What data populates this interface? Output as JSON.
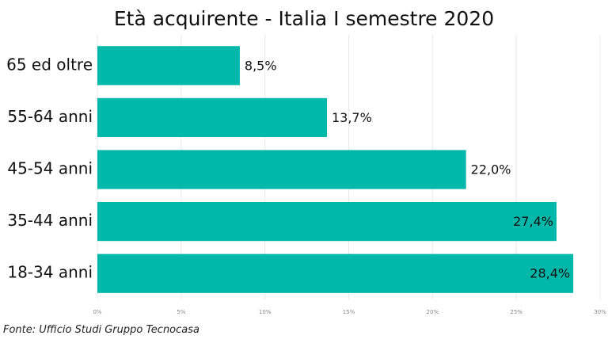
{
  "chart_data": {
    "type": "bar",
    "orientation": "horizontal",
    "title": "Età acquirente - Italia I semestre 2020",
    "categories": [
      "65 ed oltre",
      "55-64 anni",
      "45-54 anni",
      "35-44 anni",
      "18-34 anni"
    ],
    "values": [
      8.5,
      13.7,
      22.0,
      27.4,
      28.4
    ],
    "data_labels": [
      "8,5%",
      "13,7%",
      "22,0%",
      "27,4%",
      "28,4%"
    ],
    "xlim": [
      0,
      30
    ],
    "x_ticks": [
      0,
      5,
      10,
      15,
      20,
      25,
      30
    ],
    "x_tick_labels": [
      "0%",
      "5%",
      "10%",
      "15%",
      "20%",
      "25%",
      "30%"
    ],
    "grid": true,
    "legend": "none",
    "colors": {
      "bar": "#00b8a9",
      "grid": "#e8e8e8",
      "text": "#111111",
      "tick_text": "#888888"
    }
  },
  "source_note": "Fonte: Ufficio Studi Gruppo Tecnocasa"
}
